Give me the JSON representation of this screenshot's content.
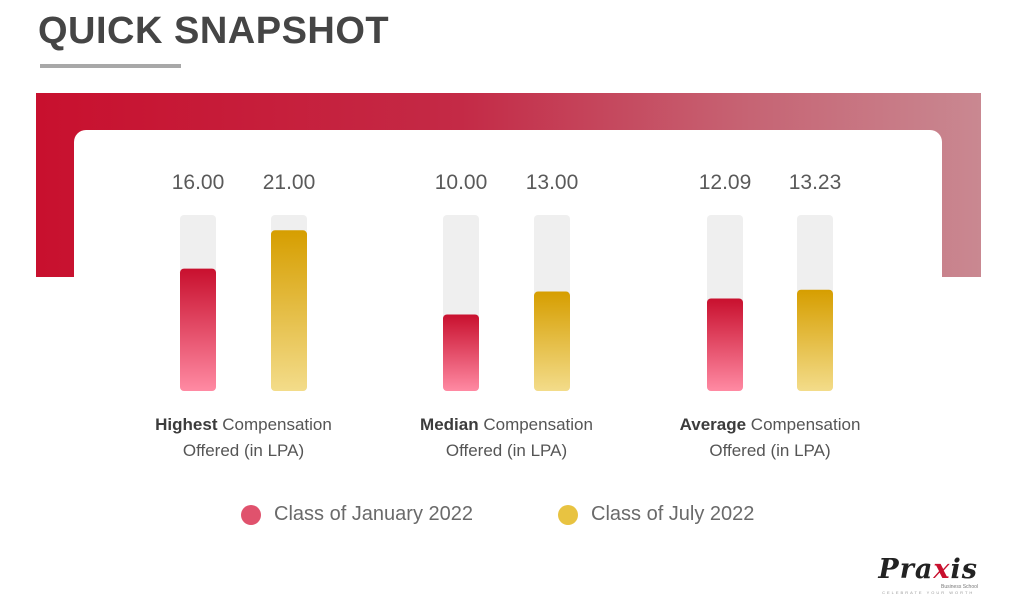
{
  "title": "QUICK SNAPSHOT",
  "colors": {
    "band_start": "#c8102e",
    "band_end": "#c98891",
    "jan_top": "#c8102e",
    "jan_bottom": "#ff8aa3",
    "jul_top": "#d69e00",
    "jul_bottom": "#f3dc8a",
    "track": "#efefef"
  },
  "legend": [
    {
      "label": "Class of January 2022",
      "color": "#e0526d"
    },
    {
      "label": "Class of July 2022",
      "color": "#e8c341"
    }
  ],
  "chart_data": {
    "type": "bar",
    "categories": [
      {
        "bold": "Highest",
        "rest": " Compensation",
        "line2": "Offered (in LPA)"
      },
      {
        "bold": "Median",
        "rest": " Compensation",
        "line2": "Offered (in LPA)"
      },
      {
        "bold": "Average",
        "rest": " Compensation",
        "line2": "Offered (in LPA)"
      }
    ],
    "series": [
      {
        "name": "Class of January 2022",
        "values": [
          16.0,
          10.0,
          12.09
        ],
        "labels": [
          "16.00",
          "10.00",
          "12.09"
        ]
      },
      {
        "name": "Class of July 2022",
        "values": [
          21.0,
          13.0,
          13.23
        ],
        "labels": [
          "21.00",
          "13.00",
          "13.23"
        ]
      }
    ],
    "ylim": [
      0,
      23
    ]
  },
  "logo": {
    "word_before": "Pra",
    "word_x": "x",
    "word_after": "is",
    "sub": "Business School",
    "tagline": "CELEBRATE YOUR WORTH"
  }
}
